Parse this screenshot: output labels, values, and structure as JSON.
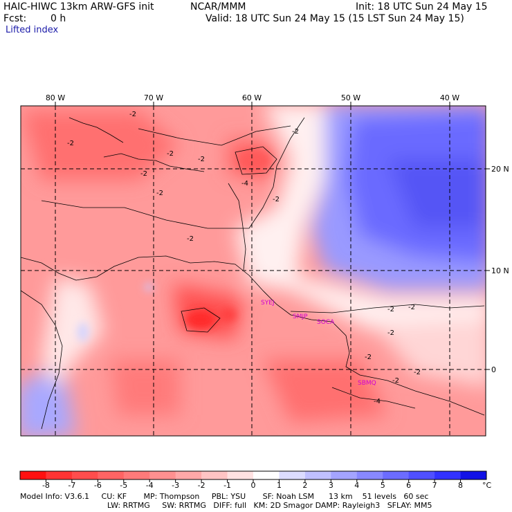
{
  "header": {
    "title_left": "HAIC-HIWC 13km ARW-GFS init",
    "title_org": "NCAR/MMM",
    "init": "Init: 18 UTC Sun 24 May 15",
    "fcst_label": "Fcst:",
    "fcst_value": "0 h",
    "valid": "Valid: 18 UTC Sun 24 May 15 (15 LST Sun 24 May 15)",
    "field": "Lifted index"
  },
  "map": {
    "lon_labels": [
      "80 W",
      "70 W",
      "60 W",
      "50 W",
      "40 W"
    ],
    "lat_labels": [
      "20 N",
      "10 N",
      "0"
    ],
    "contour_labels": [
      "-2",
      "-2",
      "-2",
      "-2",
      "-2",
      "-2",
      "-2",
      "-2",
      "-2",
      "-4",
      "-2",
      "-2",
      "-2",
      "-2",
      "-2",
      "-4",
      "-2"
    ],
    "stations": [
      "SYEJ",
      "SMJP",
      "SOCA",
      "SBMQ"
    ],
    "colors": {
      "negative_max": "#ff1a1a",
      "neutral": "#ffffff",
      "positive_max": "#1414e6",
      "contour": "#000000"
    }
  },
  "colorbar": {
    "ticks": [
      "-8",
      "-7",
      "-6",
      "-5",
      "-4",
      "-3",
      "-2",
      "-1",
      "0",
      "1",
      "2",
      "3",
      "4",
      "5",
      "6",
      "7",
      "8"
    ],
    "unit": "°C",
    "colors": [
      "#ff1010",
      "#ff3434",
      "#ff4d4d",
      "#ff6464",
      "#ff7a7a",
      "#ff9090",
      "#ffa8a8",
      "#ffc4c4",
      "#ffe2e2",
      "#ffffff",
      "#dcdcff",
      "#c0c0ff",
      "#a4a4ff",
      "#8888ff",
      "#6c6cff",
      "#5050ff",
      "#3232ff",
      "#1212e6"
    ]
  },
  "footer": {
    "line1": "Model Info: V3.6.1     CU: KF       MP: Thompson     PBL: YSU       SF: Noah LSM      13 km    51 levels   60 sec",
    "line2": "LW: RRTMG     SW: RRTMG   DIFF: full   KM: 2D Smagor DAMP: Rayleigh3   SFLAY: MM5"
  }
}
